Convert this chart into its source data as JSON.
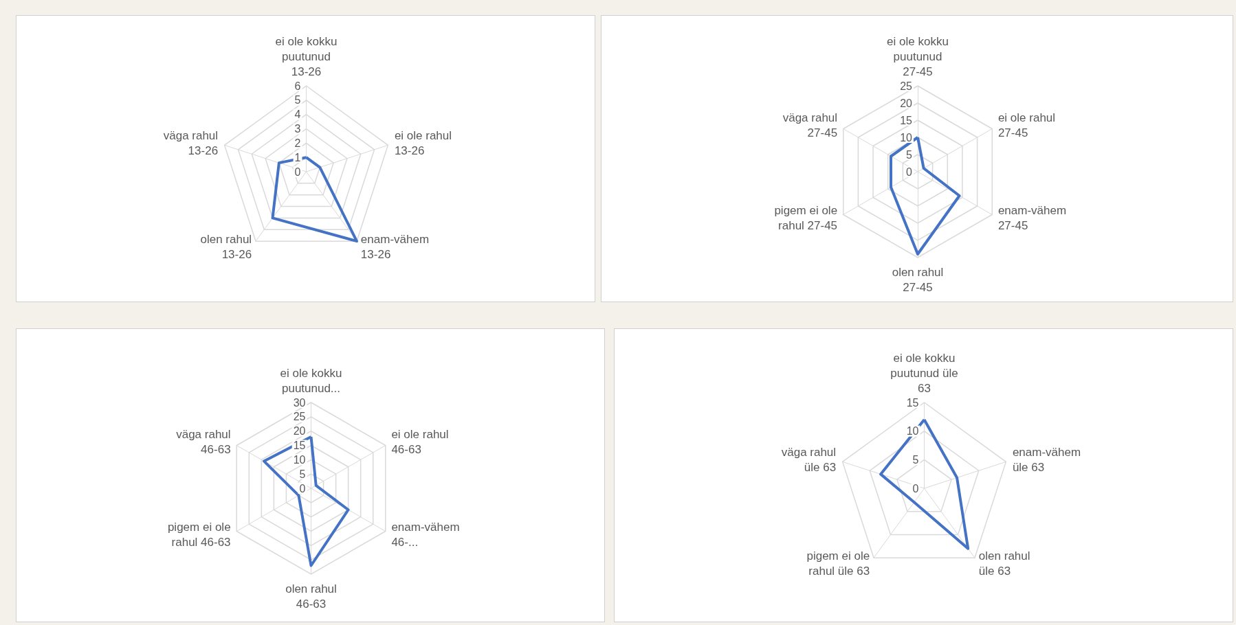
{
  "chart_data": [
    {
      "type": "radar",
      "categories": [
        "ei ole kokku puutunud 13-26",
        "ei ole rahul 13-26",
        "enam-vähem 13-26",
        "olen rahul 13-26",
        "väga rahul 13-26"
      ],
      "series": [
        {
          "color": "#4472c4",
          "values": [
            1,
            1,
            6,
            4,
            2
          ]
        }
      ],
      "ylim": [
        0,
        6
      ],
      "yticks": [
        0,
        1,
        2,
        3,
        4,
        5,
        6
      ],
      "grid": true,
      "marker": "none"
    },
    {
      "type": "radar",
      "categories": [
        "ei ole kokku puutunud 27-45",
        "ei ole rahul 27-45",
        "enam-vähem 27-45",
        "olen rahul 27-45",
        "pigem ei ole rahul 27-45",
        "väga rahul 27-45"
      ],
      "series": [
        {
          "color": "#4472c4",
          "values": [
            10,
            2,
            14,
            24,
            9,
            9
          ]
        }
      ],
      "ylim": [
        0,
        25
      ],
      "yticks": [
        0,
        5,
        10,
        15,
        20,
        25
      ],
      "grid": true,
      "marker": "none"
    },
    {
      "type": "radar",
      "categories": [
        "ei ole kokku puutunud...",
        "ei ole rahul 46-63",
        "enam-vähem 46-...",
        "olen rahul 46-63",
        "pigem ei ole rahul 46-63",
        "väga rahul 46-63"
      ],
      "series": [
        {
          "color": "#4472c4",
          "values": [
            18,
            2,
            15,
            27,
            5,
            19
          ]
        }
      ],
      "ylim": [
        0,
        30
      ],
      "yticks": [
        0,
        5,
        10,
        15,
        20,
        25,
        30
      ],
      "grid": true,
      "marker": "none"
    },
    {
      "type": "radar",
      "categories": [
        "ei ole kokku puutunud üle 63",
        "enam-vähem üle 63",
        "olen rahul üle 63",
        "pigem ei ole rahul üle 63",
        "väga rahul üle 63"
      ],
      "series": [
        {
          "color": "#4472c4",
          "values": [
            12,
            6,
            13,
            3,
            8
          ]
        }
      ],
      "ylim": [
        0,
        15
      ],
      "yticks": [
        0,
        5,
        10,
        15
      ],
      "grid": true,
      "marker": "none"
    }
  ]
}
